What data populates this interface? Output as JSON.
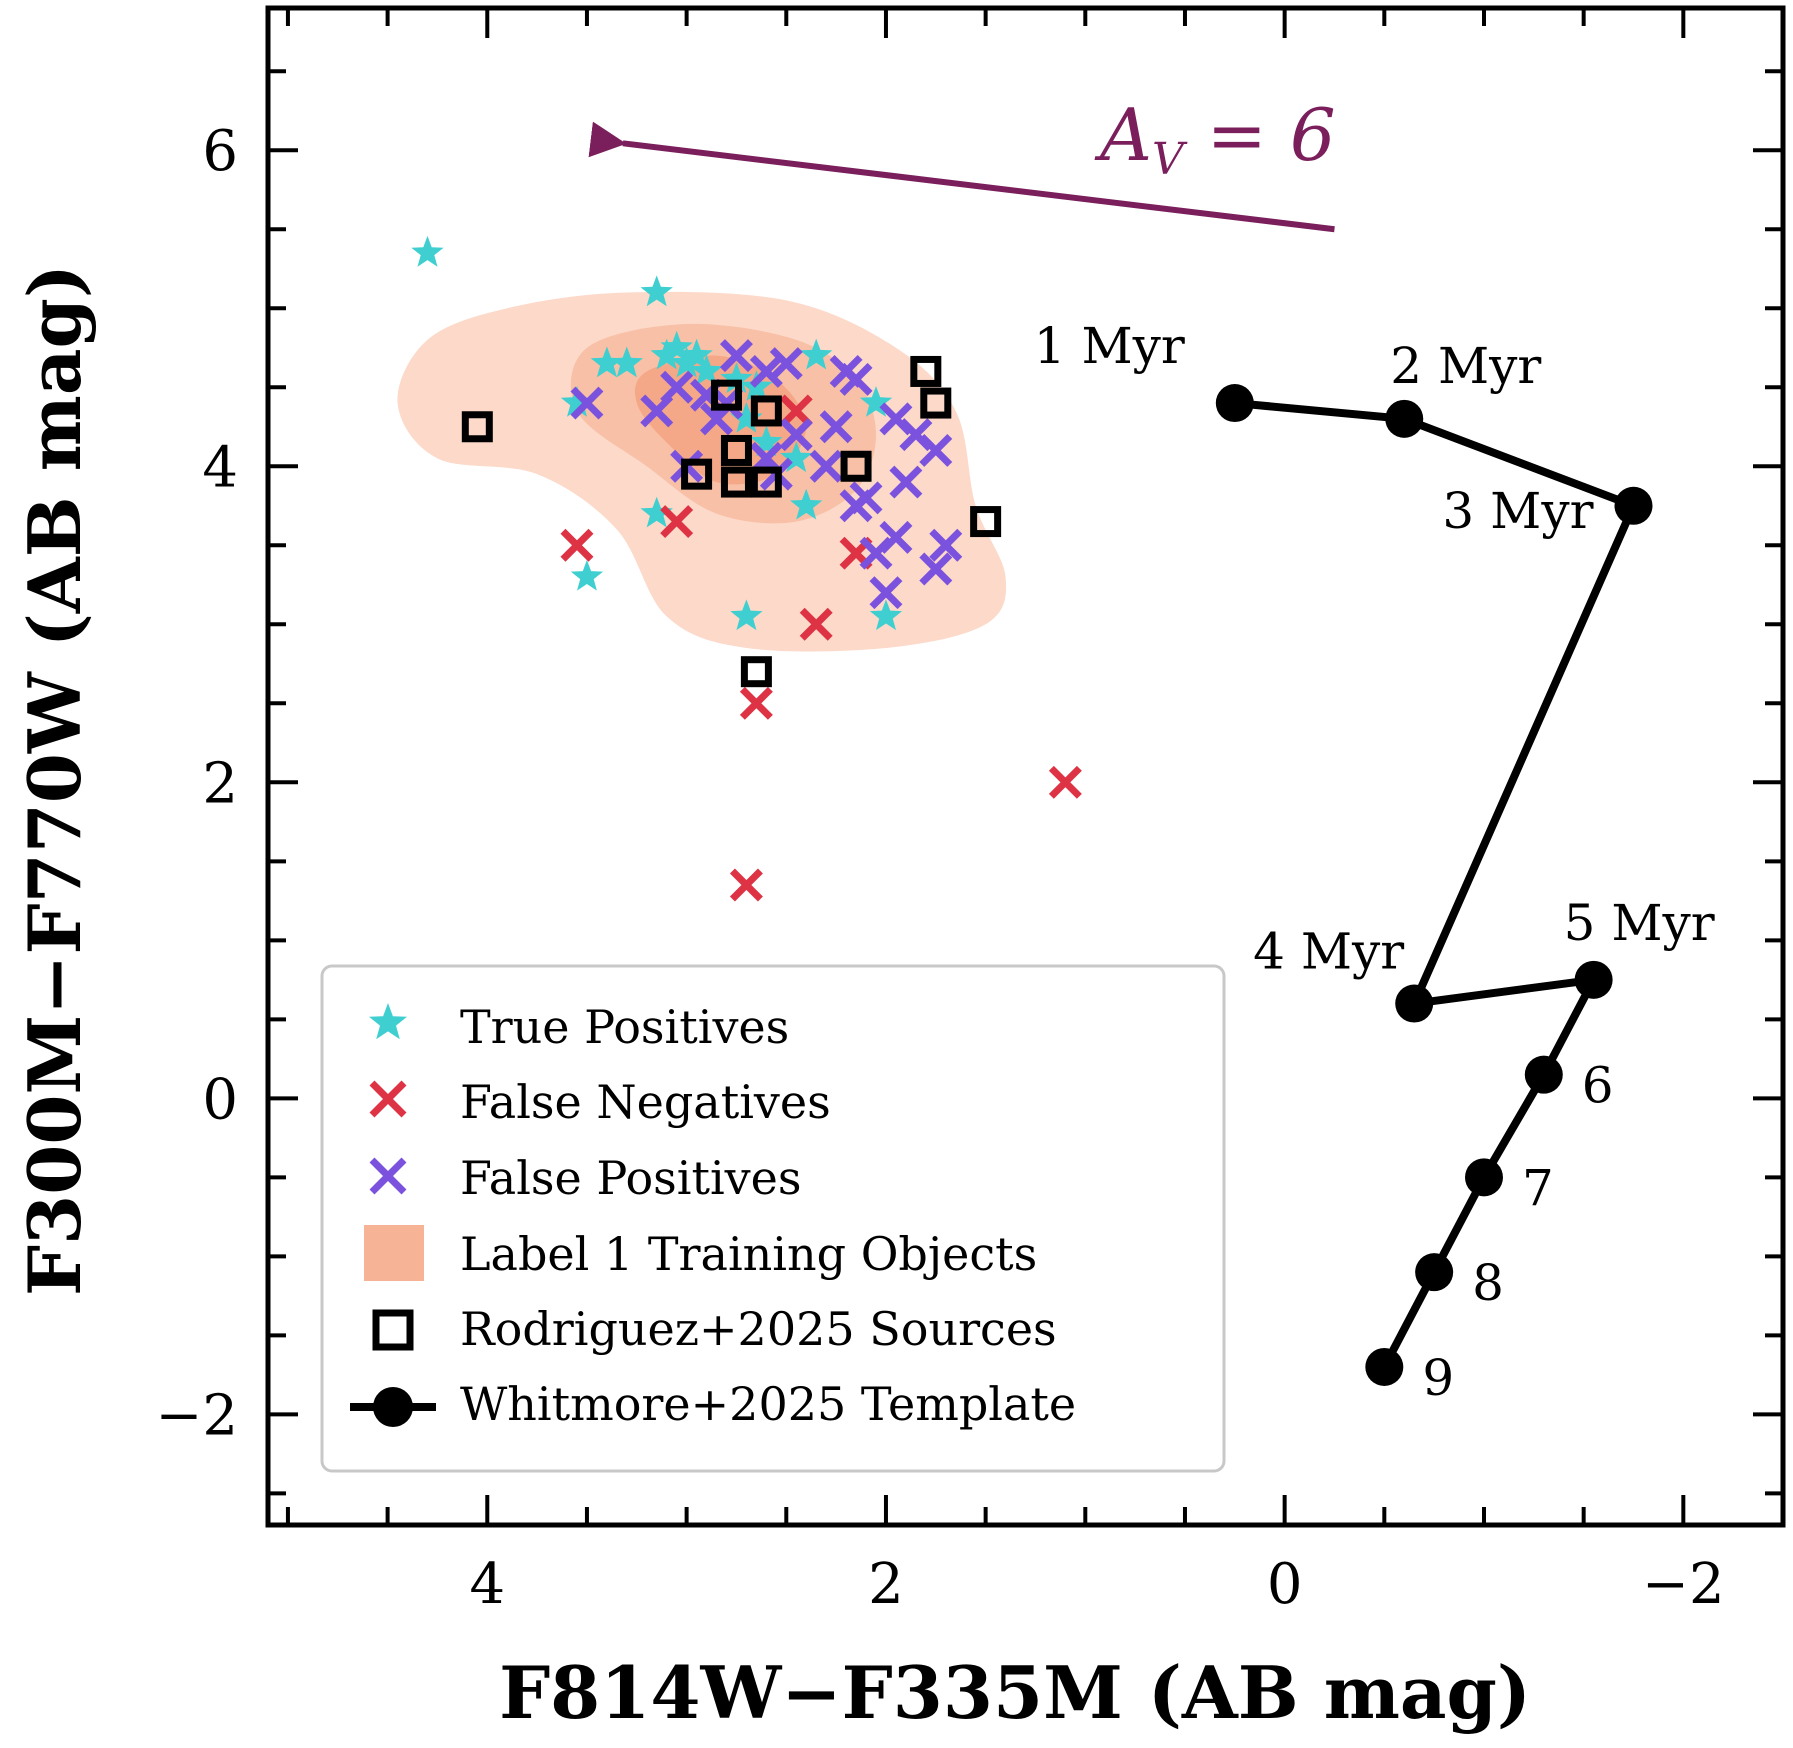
{
  "chart_data": {
    "type": "scatter",
    "xlabel": "F814W−F335M (AB mag)",
    "ylabel": "F300M−F770W (AB mag)",
    "xlim": [
      5.1,
      -2.5
    ],
    "ylim": [
      -2.7,
      6.9
    ],
    "x_ticks": [
      4,
      2,
      0,
      -2
    ],
    "x_tick_labels": [
      "4",
      "2",
      "0",
      "−2"
    ],
    "y_ticks": [
      -2,
      0,
      2,
      4,
      6
    ],
    "y_tick_labels": [
      "−2",
      "0",
      "2",
      "4",
      "6"
    ],
    "reddening_vector": {
      "label_main": "A",
      "label_sub": "V",
      "label_rest": " = 6",
      "from": [
        -0.25,
        5.5
      ],
      "to": [
        3.4,
        6.05
      ],
      "color": "#7a1f5c"
    },
    "series": [
      {
        "name": "True Positives",
        "marker": "star",
        "color": "#3fcfd0",
        "points": [
          [
            4.3,
            5.35
          ],
          [
            3.15,
            5.1
          ],
          [
            3.05,
            4.75
          ],
          [
            2.95,
            4.7
          ],
          [
            3.1,
            4.7
          ],
          [
            3.3,
            4.65
          ],
          [
            3.4,
            4.65
          ],
          [
            3.0,
            4.65
          ],
          [
            2.9,
            4.6
          ],
          [
            3.55,
            4.4
          ],
          [
            2.75,
            4.55
          ],
          [
            2.65,
            4.5
          ],
          [
            2.7,
            4.3
          ],
          [
            2.35,
            4.7
          ],
          [
            2.05,
            4.4
          ],
          [
            2.45,
            4.05
          ],
          [
            2.6,
            4.15
          ],
          [
            2.4,
            3.75
          ],
          [
            3.15,
            3.7
          ],
          [
            3.5,
            3.3
          ],
          [
            2.7,
            3.05
          ],
          [
            2.0,
            3.05
          ]
        ]
      },
      {
        "name": "False Negatives",
        "marker": "x",
        "color": "#dd3344",
        "points": [
          [
            2.45,
            4.35
          ],
          [
            3.05,
            3.65
          ],
          [
            3.55,
            3.5
          ],
          [
            2.15,
            3.45
          ],
          [
            2.35,
            3.0
          ],
          [
            2.65,
            2.5
          ],
          [
            1.1,
            2.0
          ],
          [
            2.7,
            1.35
          ]
        ]
      },
      {
        "name": "False Positives",
        "marker": "x",
        "color": "#7b52dd",
        "points": [
          [
            2.75,
            4.7
          ],
          [
            2.5,
            4.65
          ],
          [
            2.6,
            4.6
          ],
          [
            2.2,
            4.6
          ],
          [
            2.15,
            4.55
          ],
          [
            3.05,
            4.5
          ],
          [
            2.9,
            4.45
          ],
          [
            2.8,
            4.4
          ],
          [
            3.15,
            4.35
          ],
          [
            3.5,
            4.4
          ],
          [
            2.85,
            4.3
          ],
          [
            1.95,
            4.3
          ],
          [
            2.25,
            4.25
          ],
          [
            2.45,
            4.2
          ],
          [
            1.85,
            4.2
          ],
          [
            1.75,
            4.1
          ],
          [
            2.6,
            4.05
          ],
          [
            2.3,
            4.0
          ],
          [
            3.0,
            4.0
          ],
          [
            2.55,
            3.95
          ],
          [
            1.9,
            3.9
          ],
          [
            2.1,
            3.8
          ],
          [
            2.15,
            3.75
          ],
          [
            1.95,
            3.55
          ],
          [
            1.7,
            3.5
          ],
          [
            2.05,
            3.45
          ],
          [
            1.75,
            3.35
          ],
          [
            2.0,
            3.2
          ]
        ]
      }
    ],
    "rodriguez_squares": {
      "name": "Rodriguez+2025 Sources",
      "points": [
        [
          4.05,
          4.25
        ],
        [
          1.8,
          4.6
        ],
        [
          1.75,
          4.4
        ],
        [
          2.8,
          4.45
        ],
        [
          2.6,
          4.35
        ],
        [
          2.75,
          4.1
        ],
        [
          2.95,
          3.95
        ],
        [
          2.75,
          3.9
        ],
        [
          2.6,
          3.9
        ],
        [
          2.15,
          4.0
        ],
        [
          1.5,
          3.65
        ],
        [
          2.65,
          2.7
        ]
      ]
    },
    "template": {
      "name": "Whitmore+2025 Template",
      "color": "#000000",
      "points": [
        [
          0.25,
          4.4
        ],
        [
          -0.6,
          4.3
        ],
        [
          -1.75,
          3.75
        ],
        [
          -0.65,
          0.6
        ],
        [
          -1.55,
          0.75
        ],
        [
          -1.3,
          0.15
        ],
        [
          -1.0,
          -0.5
        ],
        [
          -0.75,
          -1.1
        ],
        [
          -0.5,
          -1.7
        ]
      ],
      "labels": [
        "1 Myr",
        "2 Myr",
        "3 Myr",
        "4 Myr",
        "5 Myr",
        "6",
        "7",
        "8",
        "9"
      ]
    },
    "density": {
      "name": "Label 1 Training Objects",
      "color": "#f4a080",
      "outer_contour": [
        [
          4.45,
          4.4
        ],
        [
          4.3,
          4.8
        ],
        [
          3.9,
          5.0
        ],
        [
          3.3,
          5.1
        ],
        [
          2.5,
          5.05
        ],
        [
          1.95,
          4.75
        ],
        [
          1.65,
          4.35
        ],
        [
          1.55,
          3.75
        ],
        [
          1.4,
          3.3
        ],
        [
          1.5,
          3.0
        ],
        [
          2.0,
          2.85
        ],
        [
          2.7,
          2.85
        ],
        [
          3.1,
          3.05
        ],
        [
          3.35,
          3.6
        ],
        [
          3.75,
          3.95
        ],
        [
          4.25,
          4.05
        ]
      ],
      "middle_contour": [
        [
          3.5,
          4.75
        ],
        [
          3.0,
          4.9
        ],
        [
          2.45,
          4.8
        ],
        [
          2.15,
          4.55
        ],
        [
          2.05,
          4.2
        ],
        [
          2.15,
          3.85
        ],
        [
          2.45,
          3.65
        ],
        [
          2.85,
          3.7
        ],
        [
          3.2,
          4.0
        ],
        [
          3.55,
          4.35
        ]
      ],
      "inner_contour": [
        [
          3.2,
          4.6
        ],
        [
          2.85,
          4.7
        ],
        [
          2.55,
          4.55
        ],
        [
          2.4,
          4.25
        ],
        [
          2.55,
          3.95
        ],
        [
          2.85,
          3.9
        ],
        [
          3.1,
          4.15
        ],
        [
          3.25,
          4.4
        ]
      ]
    },
    "legend": {
      "position": "lower-left",
      "entries": [
        "True Positives",
        "False Negatives",
        "False Positives",
        "Label 1 Training Objects",
        "Rodriguez+2025 Sources",
        "Whitmore+2025 Template"
      ]
    }
  }
}
